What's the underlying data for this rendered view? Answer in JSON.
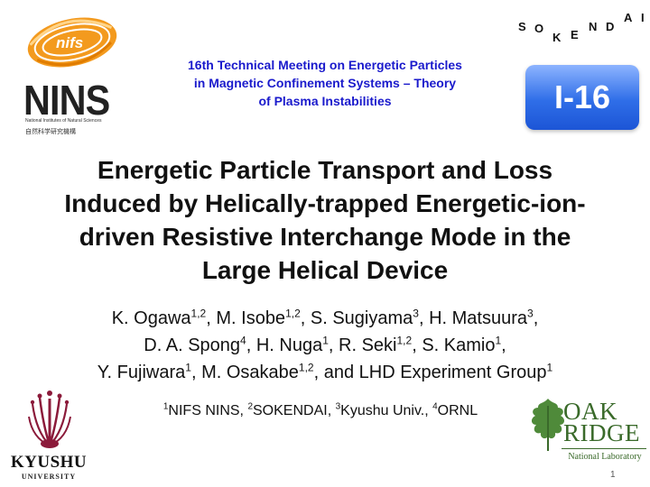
{
  "logos": {
    "nifs_text": "nifs",
    "nins_text": "NINS",
    "nins_subtitle": "National Institutes of Natural Sciences",
    "nins_japanese": "自然科学研究機構",
    "sokendai_letters": [
      "S",
      "O",
      "K",
      "E",
      "N",
      "D",
      "A",
      "I"
    ],
    "kyushu_name": "KYUSHU",
    "kyushu_sub": "UNIVERSITY",
    "oak_ridge_line1": "OAK",
    "oak_ridge_line2": "RIDGE",
    "oak_ridge_sub": "National Laboratory"
  },
  "meeting": {
    "line1": "16th Technical Meeting on Energetic Particles",
    "line2": "in Magnetic Confinement Systems – Theory",
    "line3": "of Plasma Instabilities"
  },
  "badge": "I-16",
  "title": {
    "line1": "Energetic Particle Transport and Loss",
    "line2": "Induced by Helically-trapped Energetic-ion-",
    "line3": "driven Resistive Interchange Mode in the",
    "line4": "Large Helical Device"
  },
  "authors": {
    "line1": [
      {
        "name": "K. Ogawa",
        "sup": "1,2",
        "sep": ", "
      },
      {
        "name": "M. Isobe",
        "sup": "1,2",
        "sep": ", "
      },
      {
        "name": "S. Sugiyama",
        "sup": "3",
        "sep": ", "
      },
      {
        "name": "H. Matsuura",
        "sup": "3",
        "sep": ","
      }
    ],
    "line2": [
      {
        "name": "D. A. Spong",
        "sup": "4",
        "sep": ", "
      },
      {
        "name": "H. Nuga",
        "sup": "1",
        "sep": ", "
      },
      {
        "name": "R. Seki",
        "sup": "1,2",
        "sep": ", "
      },
      {
        "name": "S. Kamio",
        "sup": "1",
        "sep": ","
      }
    ],
    "line3": [
      {
        "name": "Y. Fujiwara",
        "sup": "1",
        "sep": ", "
      },
      {
        "name": "M. Osakabe",
        "sup": "1,2",
        "sep": ", "
      },
      {
        "name": "and LHD Experiment Group",
        "sup": "1",
        "sep": ""
      }
    ]
  },
  "affiliations": [
    {
      "sup": "1",
      "name": "NIFS NINS",
      "sep": ", "
    },
    {
      "sup": "2",
      "name": "SOKENDAI",
      "sep": ", "
    },
    {
      "sup": "3",
      "name": "Kyushu Univ.",
      "sep": ", "
    },
    {
      "sup": "4",
      "name": "ORNL",
      "sep": ""
    }
  ],
  "page_number": "1",
  "colors": {
    "meeting_text": "#1a1acc",
    "badge": "#2f6ee8",
    "nifs_orange": "#f39a1e",
    "kyushu_crimson": "#8b1a3a",
    "oak_ridge_green": "#3a6a2a"
  }
}
